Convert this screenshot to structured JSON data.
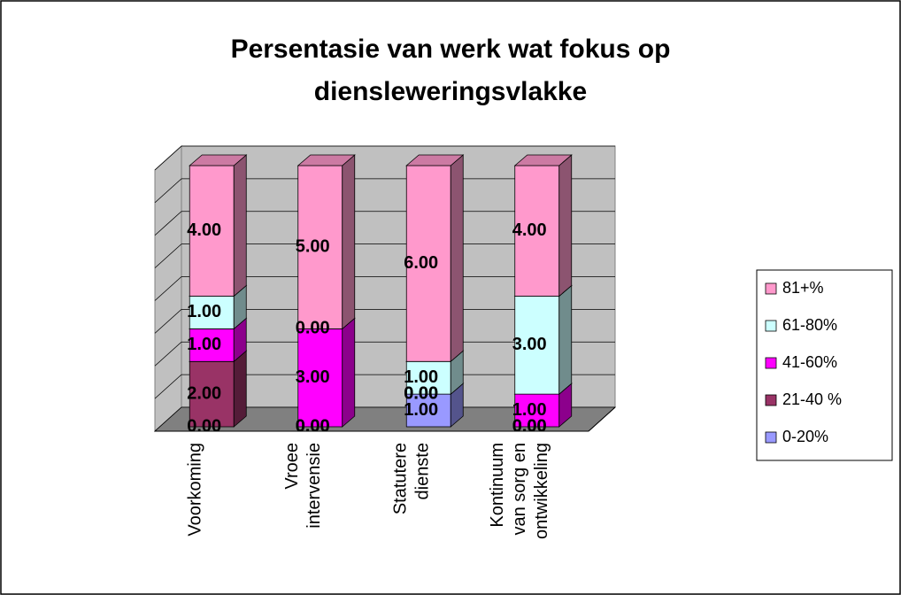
{
  "chart_data": {
    "type": "stacked_bar_3d",
    "title": "Persentasie van werk wat fokus op diensleweringsvlakke",
    "categories": [
      "Voorkoming",
      "Vroee intervensie",
      "Statutere dienste",
      "Kontinuum van sorg en ontwikkeling"
    ],
    "series": [
      {
        "name": "0-20%",
        "color": "#9999ff",
        "values": [
          0,
          0,
          1,
          0
        ],
        "value_labels": [
          "0.00",
          "0.00",
          "1.00",
          "0.00"
        ]
      },
      {
        "name": "21-40 %",
        "color": "#993366",
        "values": [
          2,
          0,
          0,
          0
        ],
        "value_labels": [
          "2.00",
          "0.00",
          "0.00",
          "0.00"
        ]
      },
      {
        "name": "41-60%",
        "color": "#ff00ff",
        "values": [
          1,
          3,
          0,
          1
        ],
        "value_labels": [
          "1.00",
          "3.00",
          "0.00",
          "1.00"
        ]
      },
      {
        "name": "61-80%",
        "color": "#ccffff",
        "values": [
          1,
          0,
          1,
          3
        ],
        "value_labels": [
          "1.00",
          "0.00",
          "1.00",
          "3.00"
        ]
      },
      {
        "name": "81+%",
        "color": "#ff99cc",
        "values": [
          4,
          5,
          6,
          4
        ],
        "value_labels": [
          "4.00",
          "5.00",
          "6.00",
          "4.00"
        ]
      }
    ],
    "ylim": [
      0,
      8
    ],
    "yticks": [
      0,
      1,
      2,
      3,
      4,
      5,
      6,
      7,
      8
    ],
    "grid": true,
    "legend": "right"
  }
}
